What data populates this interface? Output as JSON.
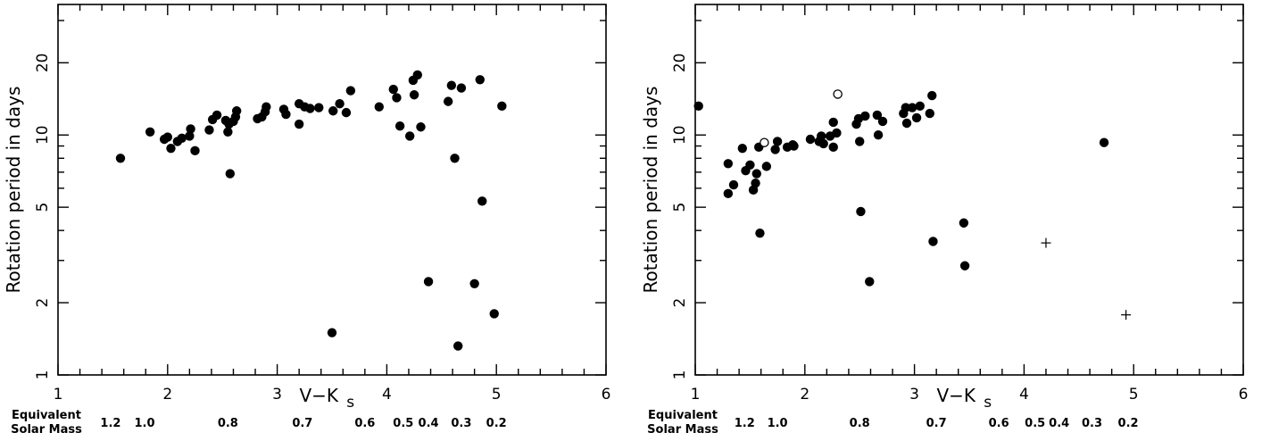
{
  "chart_data": [
    {
      "type": "scatter",
      "xlabel": "V−K",
      "xlabel_sub": "s",
      "ylabel": "Rotation period in days",
      "xlim": [
        1,
        6
      ],
      "ylim": [
        1,
        35
      ],
      "yscale": "log",
      "x_ticks": [
        "1",
        "2",
        "3",
        "4",
        "5",
        "6"
      ],
      "y_ticks": [
        {
          "value": 1,
          "label": "1"
        },
        {
          "value": 2,
          "label": "2"
        },
        {
          "value": 5,
          "label": "5"
        },
        {
          "value": 10,
          "label": "10"
        },
        {
          "value": 20,
          "label": "20"
        }
      ],
      "mass_header": [
        "Equivalent",
        "Solar Mass"
      ],
      "mass_labels": [
        {
          "x": 1.48,
          "label": "1.2"
        },
        {
          "x": 1.79,
          "label": "1.0"
        },
        {
          "x": 2.55,
          "label": "0.8"
        },
        {
          "x": 3.23,
          "label": "0.7"
        },
        {
          "x": 3.8,
          "label": "0.6"
        },
        {
          "x": 4.15,
          "label": "0.5"
        },
        {
          "x": 4.38,
          "label": "0.4"
        },
        {
          "x": 4.68,
          "label": "0.3"
        },
        {
          "x": 5.0,
          "label": "0.2"
        }
      ],
      "series": [
        {
          "marker": "filled-circle",
          "points": [
            [
              1.57,
              8.0
            ],
            [
              1.84,
              10.3
            ],
            [
              1.97,
              9.6
            ],
            [
              2.0,
              9.8
            ],
            [
              2.03,
              8.8
            ],
            [
              2.09,
              9.4
            ],
            [
              2.13,
              9.7
            ],
            [
              2.2,
              9.9
            ],
            [
              2.21,
              10.6
            ],
            [
              2.25,
              8.6
            ],
            [
              2.38,
              10.5
            ],
            [
              2.41,
              11.6
            ],
            [
              2.45,
              12.1
            ],
            [
              2.53,
              11.5
            ],
            [
              2.55,
              10.3
            ],
            [
              2.56,
              11.1
            ],
            [
              2.57,
              6.9
            ],
            [
              2.6,
              11.4
            ],
            [
              2.62,
              11.9
            ],
            [
              2.63,
              12.6
            ],
            [
              2.82,
              11.7
            ],
            [
              2.86,
              11.9
            ],
            [
              2.89,
              12.5
            ],
            [
              2.9,
              13.1
            ],
            [
              3.06,
              12.8
            ],
            [
              3.08,
              12.2
            ],
            [
              3.2,
              11.1
            ],
            [
              3.2,
              13.5
            ],
            [
              3.25,
              13.1
            ],
            [
              3.3,
              12.9
            ],
            [
              3.38,
              13.0
            ],
            [
              3.5,
              1.5
            ],
            [
              3.51,
              12.6
            ],
            [
              3.57,
              13.5
            ],
            [
              3.63,
              12.4
            ],
            [
              3.67,
              15.3
            ],
            [
              3.93,
              13.1
            ],
            [
              4.06,
              15.5
            ],
            [
              4.09,
              14.3
            ],
            [
              4.12,
              10.9
            ],
            [
              4.21,
              9.9
            ],
            [
              4.24,
              16.9
            ],
            [
              4.25,
              14.7
            ],
            [
              4.28,
              17.8
            ],
            [
              4.31,
              10.8
            ],
            [
              4.38,
              2.45
            ],
            [
              4.56,
              13.8
            ],
            [
              4.59,
              16.1
            ],
            [
              4.62,
              8.0
            ],
            [
              4.65,
              1.32
            ],
            [
              4.68,
              15.7
            ],
            [
              4.8,
              2.4
            ],
            [
              4.85,
              17.0
            ],
            [
              4.87,
              5.3
            ],
            [
              4.98,
              1.8
            ],
            [
              5.05,
              13.2
            ]
          ]
        }
      ]
    },
    {
      "type": "scatter",
      "xlabel": "V−K",
      "xlabel_sub": "s",
      "ylabel": "Rotation period in days",
      "xlim": [
        1,
        6
      ],
      "ylim": [
        1,
        35
      ],
      "yscale": "log",
      "x_ticks": [
        "1",
        "2",
        "3",
        "4",
        "5",
        "6"
      ],
      "y_ticks": [
        {
          "value": 1,
          "label": "1"
        },
        {
          "value": 2,
          "label": "2"
        },
        {
          "value": 5,
          "label": "5"
        },
        {
          "value": 10,
          "label": "10"
        },
        {
          "value": 20,
          "label": "20"
        }
      ],
      "mass_header": [
        "Equivalent",
        "Solar Mass"
      ],
      "mass_labels": [
        {
          "x": 1.45,
          "label": "1.2"
        },
        {
          "x": 1.75,
          "label": "1.0"
        },
        {
          "x": 2.5,
          "label": "0.8"
        },
        {
          "x": 3.2,
          "label": "0.7"
        },
        {
          "x": 3.77,
          "label": "0.6"
        },
        {
          "x": 4.1,
          "label": "0.5"
        },
        {
          "x": 4.32,
          "label": "0.4"
        },
        {
          "x": 4.62,
          "label": "0.3"
        },
        {
          "x": 4.95,
          "label": "0.2"
        }
      ],
      "series": [
        {
          "marker": "filled-circle",
          "points": [
            [
              1.03,
              13.2
            ],
            [
              1.3,
              7.6
            ],
            [
              1.3,
              5.7
            ],
            [
              1.35,
              6.2
            ],
            [
              1.43,
              8.8
            ],
            [
              1.46,
              7.1
            ],
            [
              1.5,
              7.5
            ],
            [
              1.53,
              5.9
            ],
            [
              1.55,
              6.3
            ],
            [
              1.56,
              6.9
            ],
            [
              1.58,
              8.9
            ],
            [
              1.59,
              3.9
            ],
            [
              1.65,
              7.4
            ],
            [
              1.73,
              8.7
            ],
            [
              1.75,
              9.4
            ],
            [
              1.84,
              8.9
            ],
            [
              1.89,
              9.1
            ],
            [
              1.9,
              9.0
            ],
            [
              2.05,
              9.6
            ],
            [
              2.13,
              9.4
            ],
            [
              2.15,
              9.9
            ],
            [
              2.17,
              9.2
            ],
            [
              2.23,
              9.9
            ],
            [
              2.26,
              11.3
            ],
            [
              2.26,
              8.9
            ],
            [
              2.29,
              10.2
            ],
            [
              2.47,
              11.1
            ],
            [
              2.49,
              11.7
            ],
            [
              2.5,
              9.4
            ],
            [
              2.51,
              4.8
            ],
            [
              2.55,
              12.0
            ],
            [
              2.59,
              2.45
            ],
            [
              2.66,
              12.1
            ],
            [
              2.67,
              10.0
            ],
            [
              2.71,
              11.4
            ],
            [
              2.9,
              12.3
            ],
            [
              2.92,
              13.0
            ],
            [
              2.93,
              11.2
            ],
            [
              2.98,
              13.0
            ],
            [
              3.02,
              11.8
            ],
            [
              3.05,
              13.2
            ],
            [
              3.14,
              12.3
            ],
            [
              3.16,
              14.6
            ],
            [
              3.17,
              3.6
            ],
            [
              3.45,
              4.3
            ],
            [
              3.46,
              2.85
            ],
            [
              4.73,
              9.3
            ]
          ]
        },
        {
          "marker": "open-circle",
          "points": [
            [
              1.63,
              9.3
            ],
            [
              2.3,
              14.8
            ]
          ]
        },
        {
          "marker": "plus",
          "points": [
            [
              4.2,
              3.55
            ],
            [
              4.93,
              1.78
            ]
          ]
        }
      ]
    }
  ]
}
